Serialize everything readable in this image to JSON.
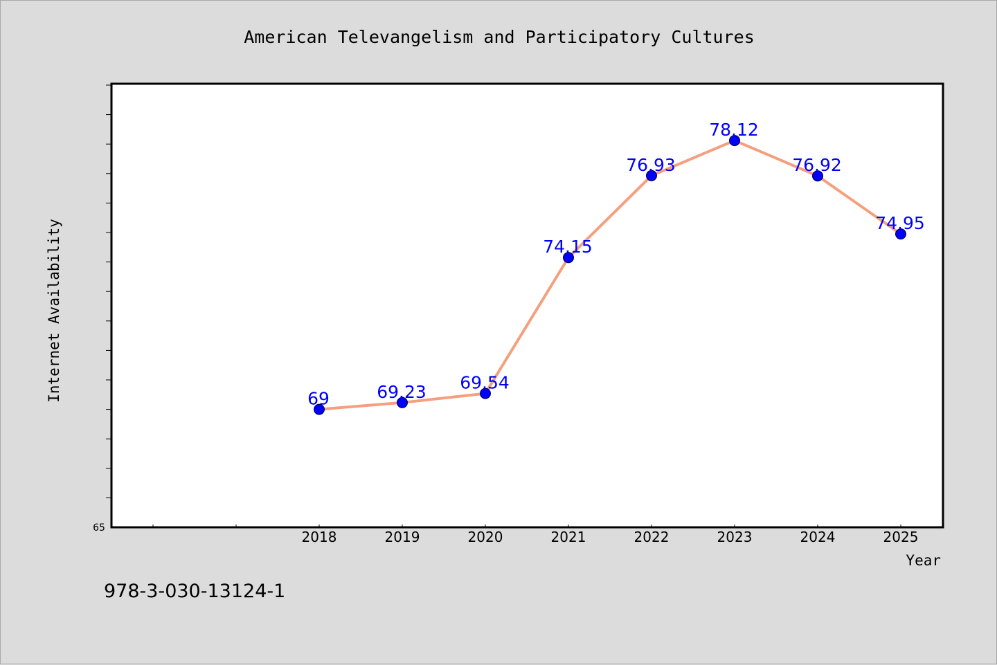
{
  "chart_data": {
    "type": "line",
    "title": "American Televangelism and Participatory Cultures",
    "xlabel": "Year",
    "ylabel": "Internet Availability",
    "categories": [
      "2018",
      "2019",
      "2020",
      "2021",
      "2022",
      "2023",
      "2024",
      "2025"
    ],
    "series": [
      {
        "values": [
          69,
          69.23,
          69.54,
          74.15,
          76.93,
          78.12,
          76.92,
          74.95
        ]
      }
    ],
    "data_labels": [
      "69",
      "69.23",
      "69.54",
      "74.15",
      "76.93",
      "78.12",
      "76.92",
      "74.95"
    ],
    "ylim": [
      65,
      80
    ],
    "y_tick_label": "65",
    "grid": false,
    "legend": "none",
    "colors": {
      "line": "#f4a07e",
      "marker": "#0000ff",
      "data_label": "#0000ff",
      "plot_background": "#ffffff",
      "figure_background": "#dcdcdc"
    }
  },
  "footer": {
    "isbn": "978-3-030-13124-1"
  }
}
